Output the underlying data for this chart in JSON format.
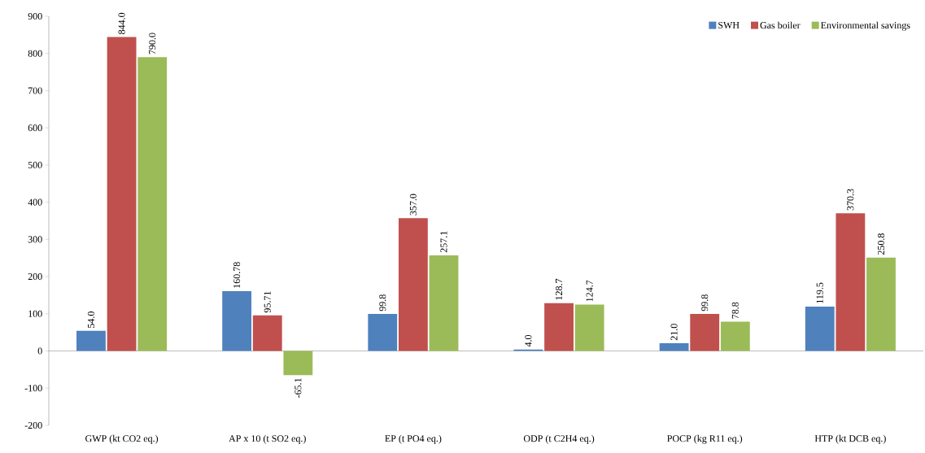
{
  "chart_data": {
    "type": "bar",
    "categories": [
      "GWP (kt CO2 eq.)",
      "AP x 10 (t SO2 eq.)",
      "EP (t PO4 eq.)",
      "ODP (t C2H4 eq.)",
      "POCP (kg R11 eq.)",
      "HTP (kt DCB eq.)"
    ],
    "series": [
      {
        "name": "SWH",
        "color": "#4f81bd",
        "values": [
          54.0,
          160.78,
          99.8,
          4.0,
          21.0,
          119.5
        ],
        "value_labels": [
          "54.0",
          "160.78",
          "99.8",
          "4.0",
          "21.0",
          "119.5"
        ]
      },
      {
        "name": "Gas boiler",
        "color": "#c0504d",
        "values": [
          844.0,
          95.71,
          357.0,
          128.7,
          99.8,
          370.3
        ],
        "value_labels": [
          "844.0",
          "95.71",
          "357.0",
          "128.7",
          "99.8",
          "370.3"
        ]
      },
      {
        "name": "Environmental savings",
        "color": "#9bbb59",
        "values": [
          790.0,
          -65.1,
          257.1,
          124.7,
          78.8,
          250.8
        ],
        "value_labels": [
          "790.0",
          "-65.1",
          "257.1",
          "124.7",
          "78.8",
          "250.8"
        ]
      }
    ],
    "ylim": [
      -200,
      900
    ],
    "yticks": [
      -200,
      -100,
      0,
      100,
      200,
      300,
      400,
      500,
      600,
      700,
      800,
      900
    ],
    "legend": "top right"
  }
}
